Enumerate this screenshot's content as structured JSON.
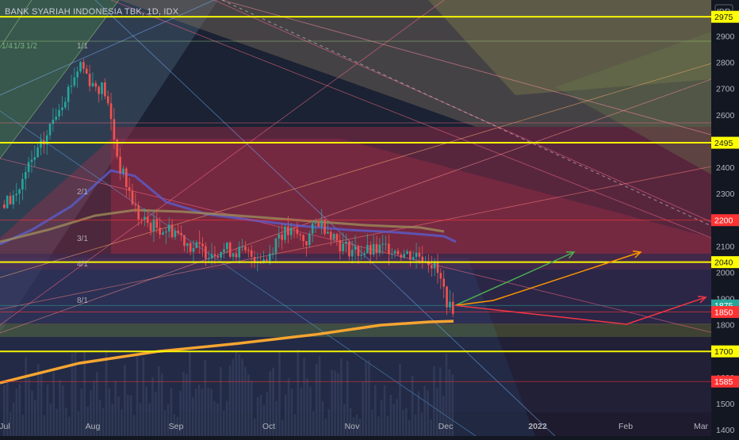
{
  "chart_data": {
    "type": "line",
    "title": "BANK SYARIAH INDONESIA TBK, 1D, IDX",
    "currency": "IDR",
    "x_tick_labels": [
      "Jul",
      "Aug",
      "Sep",
      "Oct",
      "Nov",
      "Dec",
      "2022",
      "Feb",
      "Mar"
    ],
    "y_ticks": [
      2900,
      2800,
      2700,
      2600,
      2500,
      2400,
      2300,
      2200,
      2100,
      2000,
      1900,
      1800,
      1700,
      1600,
      1500,
      1400
    ],
    "ylim": [
      1400,
      2975
    ],
    "horizontal_levels": [
      {
        "value": 2975,
        "label": "2975",
        "color": "#ffff00"
      },
      {
        "value": 2495,
        "label": "2495",
        "color": "#ffff00"
      },
      {
        "value": 2200,
        "label": "2200",
        "color": "#ff3333"
      },
      {
        "value": 2040,
        "label": "2040",
        "color": "#ffff00"
      },
      {
        "value": 1875,
        "label": "1875",
        "color": "#26a69a"
      },
      {
        "value": 1850,
        "label": "1850",
        "color": "#ff3333"
      },
      {
        "value": 1700,
        "label": "1700",
        "color": "#ffff00"
      },
      {
        "value": 1585,
        "label": "1585",
        "color": "#ff3333"
      }
    ],
    "fan_labels": [
      "1/4",
      "1/3",
      "1/2",
      "1/1",
      "2/1",
      "3/1",
      "4/1",
      "8/1"
    ],
    "projections": [
      {
        "color": "#4caf50",
        "from": [
          "Dec 2",
          1875
        ],
        "to": [
          "Jan 10",
          2040
        ]
      },
      {
        "color": "#ff9800",
        "from": [
          "Dec 2",
          1875
        ],
        "via": [
          "Dec 15",
          1850
        ],
        "to": [
          "Feb 10",
          2040
        ]
      },
      {
        "color": "#f23645",
        "from": [
          "Dec 2",
          1875
        ],
        "via": [
          "Feb 1",
          1750
        ],
        "to": [
          "Mar 5",
          1875
        ]
      }
    ],
    "last_price": 1875
  },
  "colors": {
    "background": "#131722",
    "bull": "#26a69a",
    "bear": "#ef5350",
    "ma_long": "#f7a531",
    "ma_mid": "#9c8b5a",
    "ma_short": "#5a5fd6"
  }
}
